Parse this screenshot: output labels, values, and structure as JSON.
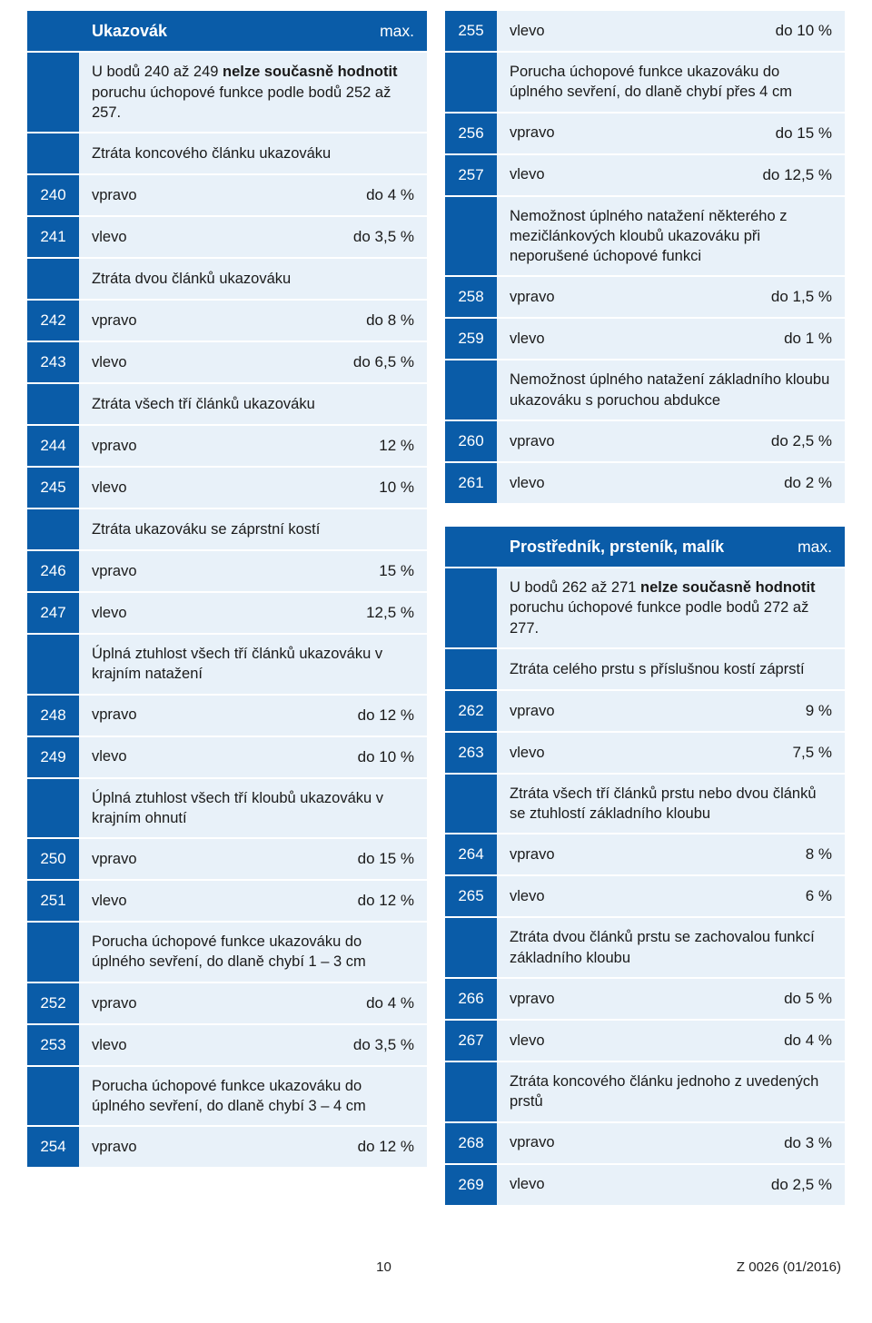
{
  "left": [
    {
      "type": "hdr",
      "num": "",
      "txt": "Ukazovák",
      "val": "max."
    },
    {
      "type": "full",
      "num": "",
      "txt": "U bodů 240 až 249 <b>nelze současně hodnotit</b> poruchu úchopové funkce podle bodů 252 až 257."
    },
    {
      "type": "full",
      "num": "",
      "txt": "Ztráta koncového článku ukazováku"
    },
    {
      "type": "data",
      "num": "240",
      "txt": "vpravo",
      "val": "do 4 %"
    },
    {
      "type": "data",
      "num": "241",
      "txt": "vlevo",
      "val": "do 3,5 %"
    },
    {
      "type": "full",
      "num": "",
      "txt": "Ztráta dvou článků ukazováku"
    },
    {
      "type": "data",
      "num": "242",
      "txt": "vpravo",
      "val": "do 8 %"
    },
    {
      "type": "data",
      "num": "243",
      "txt": "vlevo",
      "val": "do 6,5 %"
    },
    {
      "type": "full",
      "num": "",
      "txt": "Ztráta všech tří článků ukazováku"
    },
    {
      "type": "data",
      "num": "244",
      "txt": "vpravo",
      "val": "12 %"
    },
    {
      "type": "data",
      "num": "245",
      "txt": "vlevo",
      "val": "10 %"
    },
    {
      "type": "full",
      "num": "",
      "txt": "Ztráta ukazováku se záprstní kostí"
    },
    {
      "type": "data",
      "num": "246",
      "txt": "vpravo",
      "val": "15 %"
    },
    {
      "type": "data",
      "num": "247",
      "txt": "vlevo",
      "val": "12,5 %"
    },
    {
      "type": "full",
      "num": "",
      "txt": "Úplná ztuhlost všech tří článků ukazováku v krajním natažení"
    },
    {
      "type": "data",
      "num": "248",
      "txt": "vpravo",
      "val": "do 12 %"
    },
    {
      "type": "data",
      "num": "249",
      "txt": "vlevo",
      "val": "do 10 %"
    },
    {
      "type": "full",
      "num": "",
      "txt": "Úplná ztuhlost všech tří kloubů ukazováku v krajním ohnutí"
    },
    {
      "type": "data",
      "num": "250",
      "txt": "vpravo",
      "val": "do 15 %"
    },
    {
      "type": "data",
      "num": "251",
      "txt": "vlevo",
      "val": "do 12 %"
    },
    {
      "type": "full",
      "num": "",
      "txt": "Porucha úchopové funkce ukazováku do úplného sevření, do dlaně chybí 1 – 3 cm"
    },
    {
      "type": "data",
      "num": "252",
      "txt": "vpravo",
      "val": "do 4 %"
    },
    {
      "type": "data",
      "num": "253",
      "txt": "vlevo",
      "val": "do 3,5 %"
    },
    {
      "type": "full",
      "num": "",
      "txt": "Porucha úchopové funkce ukazováku do úplného sevření, do dlaně chybí 3 – 4 cm"
    },
    {
      "type": "data",
      "num": "254",
      "txt": "vpravo",
      "val": "do 12 %"
    }
  ],
  "right": [
    {
      "type": "data",
      "num": "255",
      "txt": "vlevo",
      "val": "do 10 %"
    },
    {
      "type": "full",
      "num": "",
      "txt": "Porucha úchopové funkce ukazováku do úplného sevření, do dlaně chybí přes 4 cm"
    },
    {
      "type": "data",
      "num": "256",
      "txt": "vpravo",
      "val": "do 15 %"
    },
    {
      "type": "data",
      "num": "257",
      "txt": "vlevo",
      "val": "do 12,5 %"
    },
    {
      "type": "full",
      "num": "",
      "txt": "Nemožnost úplného natažení některého z mezičlánkových kloubů ukazováku při neporušené úchopové funkci"
    },
    {
      "type": "data",
      "num": "258",
      "txt": "vpravo",
      "val": "do 1,5 %"
    },
    {
      "type": "data",
      "num": "259",
      "txt": "vlevo",
      "val": "do 1 %"
    },
    {
      "type": "full",
      "num": "",
      "txt": "Nemožnost úplného natažení základního kloubu ukazováku s poruchou abdukce"
    },
    {
      "type": "data",
      "num": "260",
      "txt": "vpravo",
      "val": "do 2,5 %"
    },
    {
      "type": "data",
      "num": "261",
      "txt": "vlevo",
      "val": "do 2 %"
    },
    {
      "type": "gap"
    },
    {
      "type": "hdr",
      "num": "",
      "txt": "Prostředník, prsteník, malík",
      "val": "max."
    },
    {
      "type": "full",
      "num": "",
      "txt": "U bodů 262 až 271 <b>nelze současně hodnotit</b> poruchu úchopové funkce podle bodů 272 až 277."
    },
    {
      "type": "full",
      "num": "",
      "txt": "Ztráta celého prstu s příslušnou kostí záprstí"
    },
    {
      "type": "data",
      "num": "262",
      "txt": "vpravo",
      "val": "9 %"
    },
    {
      "type": "data",
      "num": "263",
      "txt": "vlevo",
      "val": "7,5 %"
    },
    {
      "type": "full",
      "num": "",
      "txt": "Ztráta všech tří článků prstu nebo dvou článků se ztuhlostí základního kloubu"
    },
    {
      "type": "data",
      "num": "264",
      "txt": "vpravo",
      "val": "8 %"
    },
    {
      "type": "data",
      "num": "265",
      "txt": "vlevo",
      "val": "6 %"
    },
    {
      "type": "full",
      "num": "",
      "txt": "Ztráta dvou článků prstu se zachovalou funkcí základního kloubu"
    },
    {
      "type": "data",
      "num": "266",
      "txt": "vpravo",
      "val": "do 5 %"
    },
    {
      "type": "data",
      "num": "267",
      "txt": "vlevo",
      "val": "do 4 %"
    },
    {
      "type": "full",
      "num": "",
      "txt": "Ztráta koncového článku jednoho z uvedených prstů"
    },
    {
      "type": "data",
      "num": "268",
      "txt": "vpravo",
      "val": "do 3 %"
    },
    {
      "type": "data",
      "num": "269",
      "txt": "vlevo",
      "val": "do 2,5 %"
    }
  ],
  "footer": {
    "page": "10",
    "code": "Z 0026 (01/2016)"
  }
}
